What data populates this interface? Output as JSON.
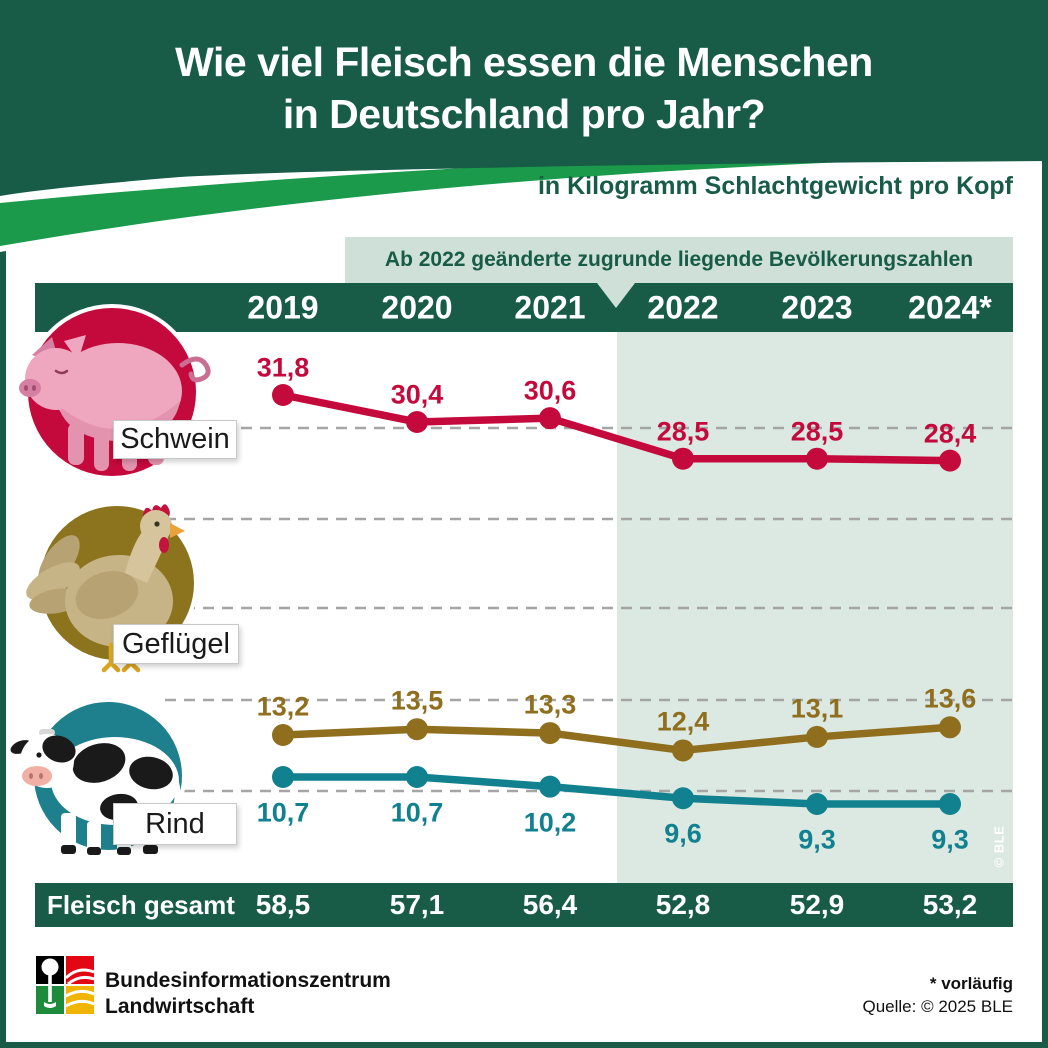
{
  "header": {
    "title_line1": "Wie viel Fleisch essen die Menschen",
    "title_line2": "in Deutschland pro Jahr?",
    "subtitle": "in Kilogramm Schlachtgewicht pro Kopf"
  },
  "note": "Ab 2022 geänderte zugrunde liegende Bevölkerungszahlen",
  "watermark": "© BLE",
  "footer": {
    "org_line1": "Bundesinformationszentrum",
    "org_line2": "Landwirtschaft",
    "preliminary_note": "* vorläufig",
    "source": "Quelle: © 2025 BLE"
  },
  "colors": {
    "primary_green": "#185C48",
    "accent_green": "#1A9A4A",
    "note_bg": "#CFE0D8",
    "highlight_bg": "#DCE8E2",
    "schwein": "#C40A3C",
    "gefluegel": "#8F6E1E",
    "rind": "#12818F",
    "grid_gray": "#A5A5A5"
  },
  "chart_data": {
    "type": "line",
    "title": "Wie viel Fleisch essen die Menschen in Deutschland pro Jahr?",
    "subtitle": "in Kilogramm Schlachtgewicht pro Kopf",
    "annotation": "Ab 2022 geänderte zugrunde liegende Bevölkerungszahlen",
    "categories": [
      "2019",
      "2020",
      "2021",
      "2022",
      "2023",
      "2024*"
    ],
    "series": [
      {
        "name": "Schwein",
        "color": "#C40A3C",
        "values": [
          31.8,
          30.4,
          30.6,
          28.5,
          28.5,
          28.4
        ],
        "labels": [
          "31,8",
          "30,4",
          "30,6",
          "28,5",
          "28,5",
          "28,4"
        ]
      },
      {
        "name": "Geflügel",
        "color": "#8F6E1E",
        "values": [
          13.2,
          13.5,
          13.3,
          12.4,
          13.1,
          13.6
        ],
        "labels": [
          "13,2",
          "13,5",
          "13,3",
          "12,4",
          "13,1",
          "13,6"
        ]
      },
      {
        "name": "Rind",
        "color": "#12818F",
        "values": [
          10.7,
          10.7,
          10.2,
          9.6,
          9.3,
          9.3
        ],
        "labels": [
          "10,7",
          "10,7",
          "10,2",
          "9,6",
          "9,3",
          "9,3"
        ]
      }
    ],
    "total": {
      "label": "Fleisch gesamt",
      "values": [
        58.5,
        57.1,
        56.4,
        52.8,
        52.9,
        53.2
      ],
      "labels": [
        "58,5",
        "57,1",
        "56,4",
        "52,8",
        "52,9",
        "53,2"
      ]
    },
    "highlight_region": {
      "from": "2022",
      "to": "2024*"
    },
    "legend_position": "left-pictograms",
    "grid": "dashed-horizontal"
  }
}
